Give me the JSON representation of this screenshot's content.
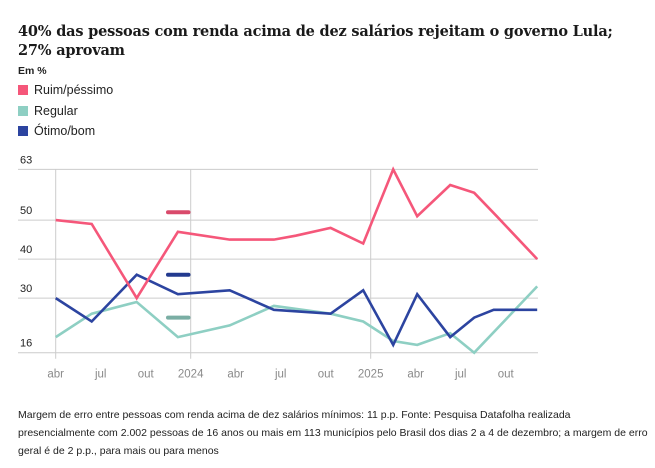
{
  "title": "40% das pessoas com renda acima de dez salários rejeitam o governo Lula; 27% aprovam",
  "unit_label": "Em %",
  "legend": [
    {
      "label": "Ruim/péssimo",
      "color": "#f5577a"
    },
    {
      "label": "Regular",
      "color": "#8ecfc3"
    },
    {
      "label": "Ótimo/bom",
      "color": "#2c44a0"
    }
  ],
  "footer": "Margem de erro entre pessoas com renda acima de dez salários mínimos: 11 p.p. Fonte: Pesquisa Datafolha realizada presencialmente com 2.002 pessoas de 16 anos ou mais em 113 municípios pelo Brasil dos dias 2 a 4 de dezembro; a margem de erro geral é de 2 p.p., para mais ou para menos",
  "chart_data": {
    "type": "line",
    "title": "40% das pessoas com renda acima de dez salários rejeitam o governo Lula; 27% aprovam",
    "xlabel": "",
    "ylabel": "Em %",
    "ylim": [
      16,
      63
    ],
    "yticks": [
      63,
      50,
      40,
      30,
      16
    ],
    "grid": true,
    "x_ticks": [
      {
        "label": "abr",
        "month": -9
      },
      {
        "label": "jul",
        "month": -6
      },
      {
        "label": "out",
        "month": -3
      },
      {
        "label": "2024",
        "month": 0,
        "year_line": true
      },
      {
        "label": "abr",
        "month": 3
      },
      {
        "label": "jul",
        "month": 6
      },
      {
        "label": "out",
        "month": 9
      },
      {
        "label": "2025",
        "month": 12,
        "year_line": true
      },
      {
        "label": "abr",
        "month": 15
      },
      {
        "label": "jul",
        "month": 18
      },
      {
        "label": "out",
        "month": 21
      }
    ],
    "x_domain_months_from_jan_2024": [
      -9,
      23.1
    ],
    "series": [
      {
        "name": "Ruim/péssimo",
        "color": "#f5577a",
        "points": [
          {
            "month": -9,
            "value": 50
          },
          {
            "month": -6.6,
            "value": 49
          },
          {
            "month": -3.6,
            "value": 30
          },
          {
            "month": -0.85,
            "value": 47
          },
          {
            "month": 2.6,
            "value": 45
          },
          {
            "month": 5.55,
            "value": 45
          },
          {
            "month": 7,
            "value": 46
          },
          {
            "month": 9.33,
            "value": 48
          },
          {
            "month": 11.5,
            "value": 44
          },
          {
            "month": 13.5,
            "value": 63
          },
          {
            "month": 15.1,
            "value": 51
          },
          {
            "month": 17.3,
            "value": 59
          },
          {
            "month": 18.9,
            "value": 57
          },
          {
            "month": 20.4,
            "value": 51
          },
          {
            "month": 23.1,
            "value": 40
          }
        ]
      },
      {
        "name": "Regular",
        "color": "#8ecfc3",
        "points": [
          {
            "month": -9,
            "value": 20
          },
          {
            "month": -6.6,
            "value": 26
          },
          {
            "month": -3.6,
            "value": 29
          },
          {
            "month": -0.85,
            "value": 20
          },
          {
            "month": 2.6,
            "value": 23
          },
          {
            "month": 5.55,
            "value": 28
          },
          {
            "month": 9.33,
            "value": 26
          },
          {
            "month": 11.5,
            "value": 24
          },
          {
            "month": 13.5,
            "value": 19
          },
          {
            "month": 15.1,
            "value": 18
          },
          {
            "month": 17.3,
            "value": 21
          },
          {
            "month": 18.9,
            "value": 16
          },
          {
            "month": 23.1,
            "value": 33
          }
        ]
      },
      {
        "name": "Ótimo/bom",
        "color": "#2c44a0",
        "points": [
          {
            "month": -9,
            "value": 30
          },
          {
            "month": -6.6,
            "value": 24
          },
          {
            "month": -3.6,
            "value": 36
          },
          {
            "month": -0.85,
            "value": 31
          },
          {
            "month": 2.6,
            "value": 32
          },
          {
            "month": 5.55,
            "value": 27
          },
          {
            "month": 9.33,
            "value": 26
          },
          {
            "month": 11.5,
            "value": 32
          },
          {
            "month": 13.5,
            "value": 18
          },
          {
            "month": 15.1,
            "value": 31
          },
          {
            "month": 17.3,
            "value": 20
          },
          {
            "month": 18.9,
            "value": 25
          },
          {
            "month": 20.2,
            "value": 27
          },
          {
            "month": 23.1,
            "value": 27
          }
        ]
      }
    ],
    "reference_markers": [
      {
        "series": "Ruim/péssimo",
        "value": 52,
        "color": "#d94a6b"
      },
      {
        "series": "Ótimo/bom",
        "value": 36,
        "color": "#233a8f"
      },
      {
        "series": "Regular",
        "value": 25,
        "color": "#7aaea4"
      }
    ]
  }
}
